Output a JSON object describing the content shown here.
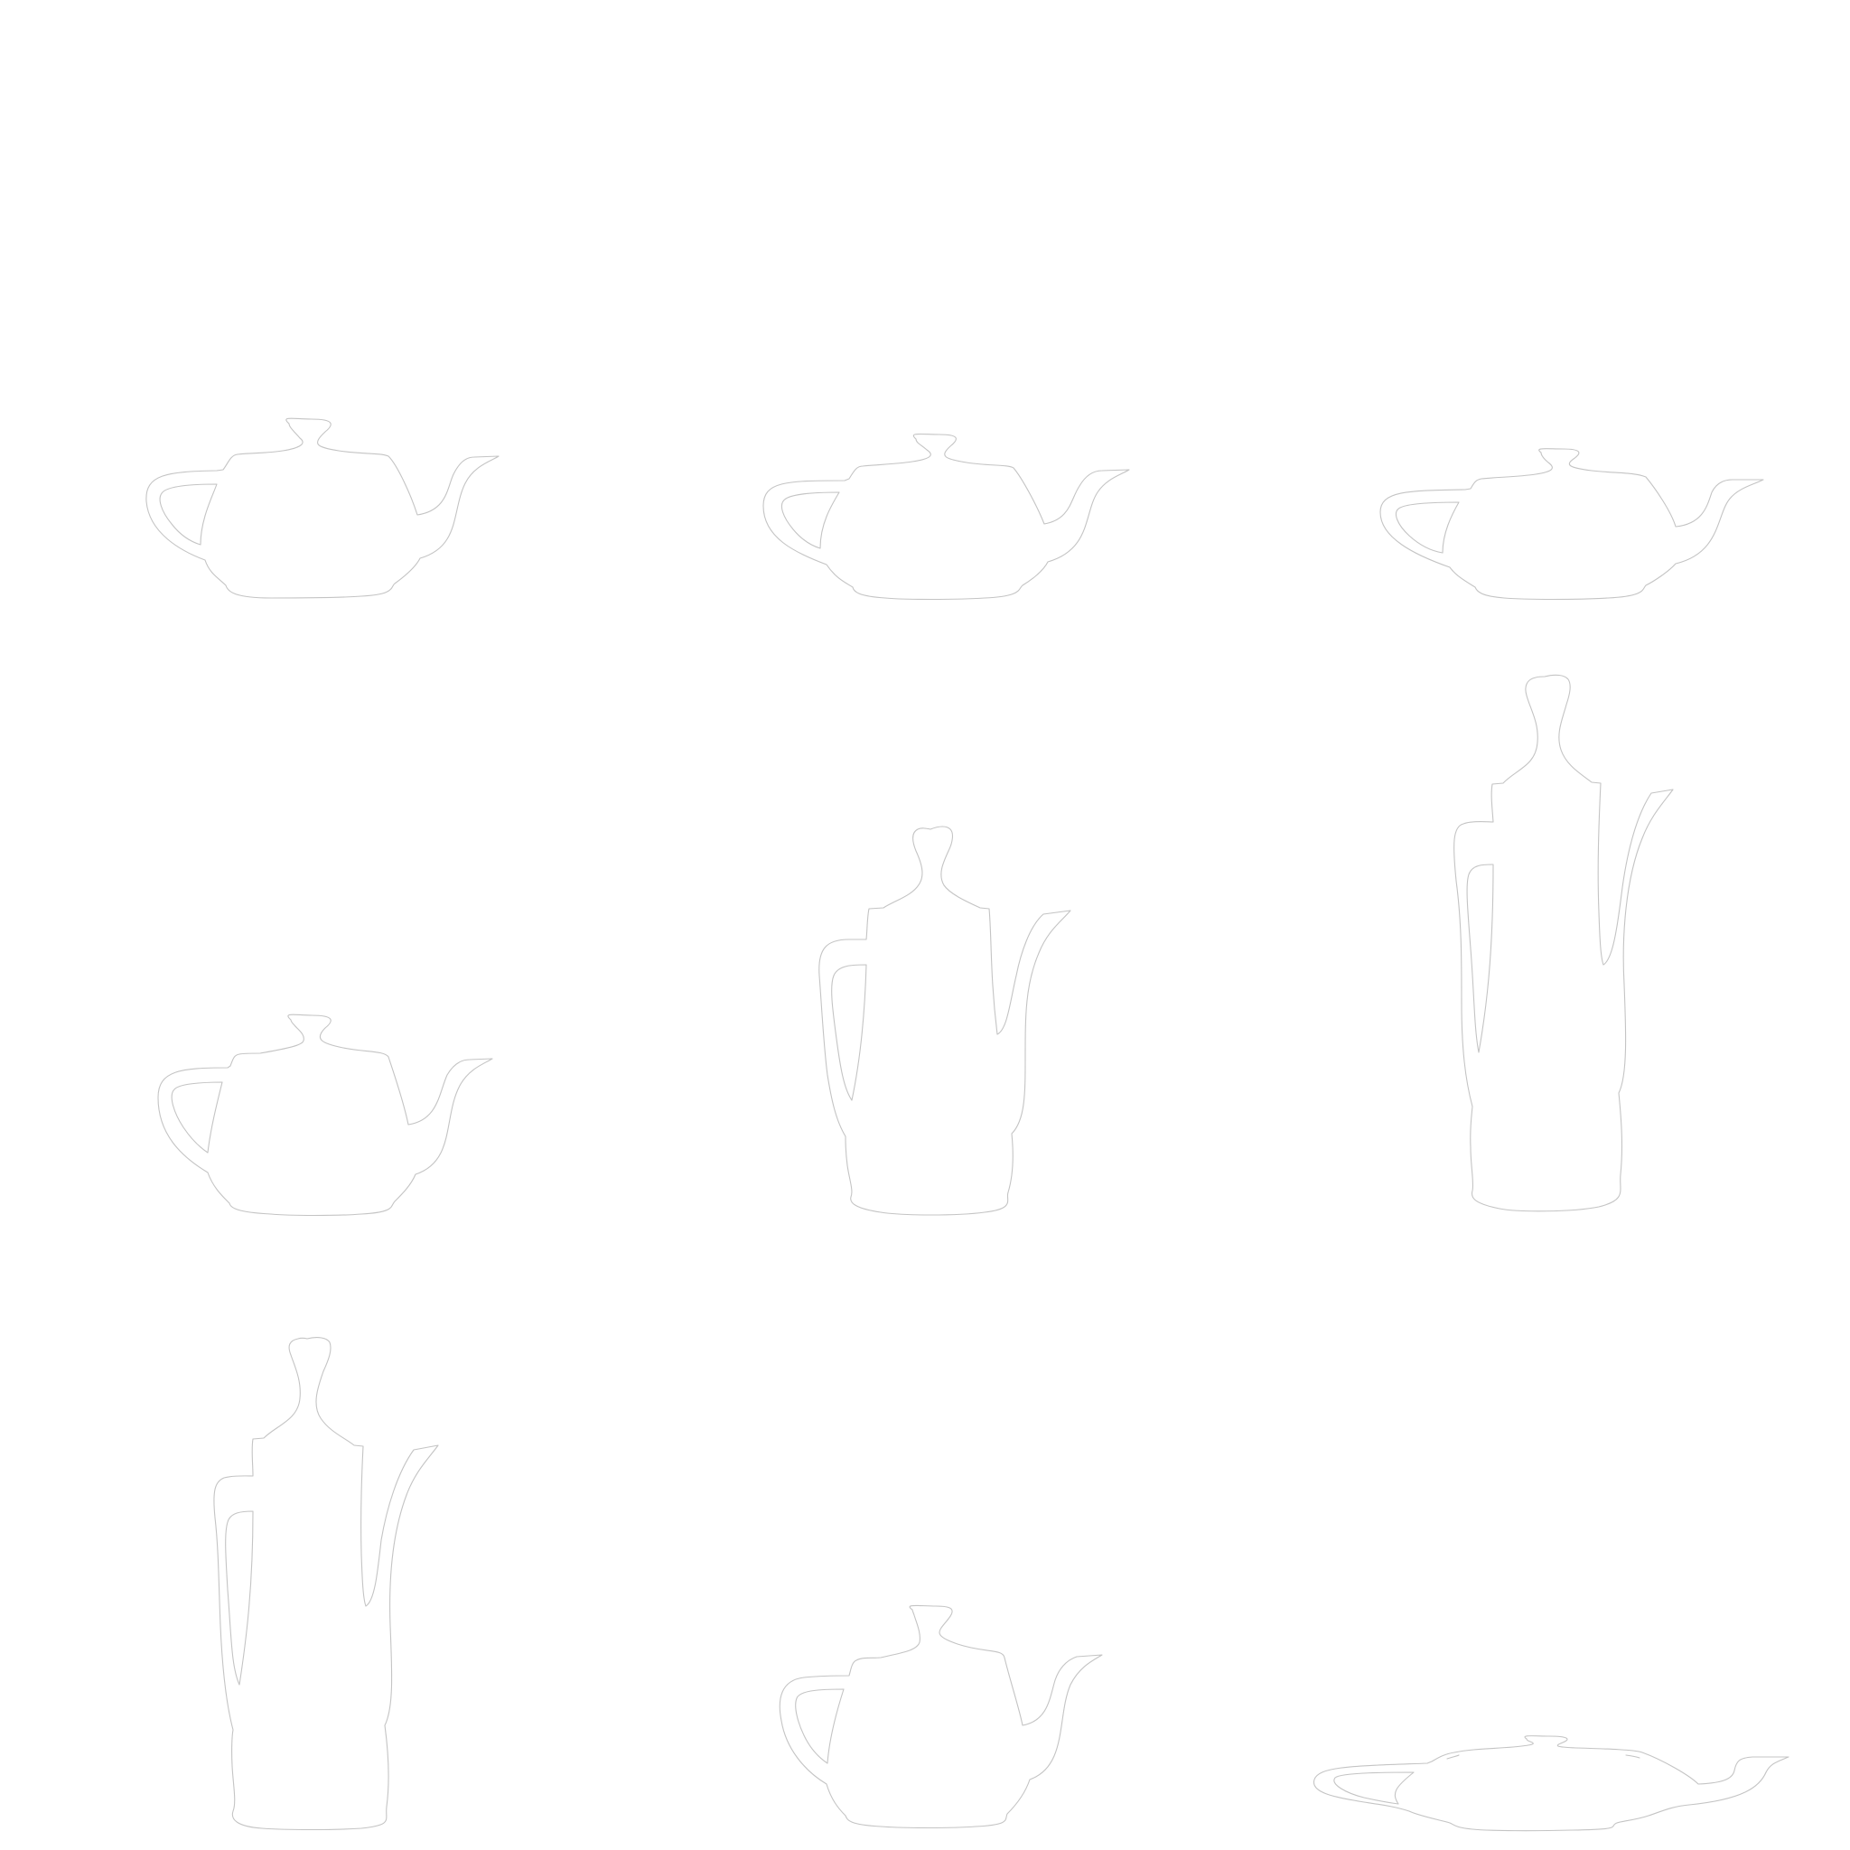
{
  "colors": {
    "background": "#ffffff",
    "outline": "#c4c4c4"
  },
  "grid": {
    "rows": 3,
    "columns": 3
  },
  "cells": [
    {
      "row": 1,
      "col": 1,
      "icon": "teapot-icon"
    },
    {
      "row": 1,
      "col": 2,
      "icon": "teapot-icon"
    },
    {
      "row": 1,
      "col": 3,
      "icon": "teapot-icon"
    },
    {
      "row": 2,
      "col": 1,
      "icon": "teapot-icon"
    },
    {
      "row": 2,
      "col": 2,
      "icon": "coffee-pot-icon"
    },
    {
      "row": 2,
      "col": 3,
      "icon": "coffee-pot-icon"
    },
    {
      "row": 3,
      "col": 1,
      "icon": "coffee-pot-icon"
    },
    {
      "row": 3,
      "col": 2,
      "icon": "teapot-icon"
    },
    {
      "row": 3,
      "col": 3,
      "icon": "flat-teapot-icon"
    }
  ]
}
